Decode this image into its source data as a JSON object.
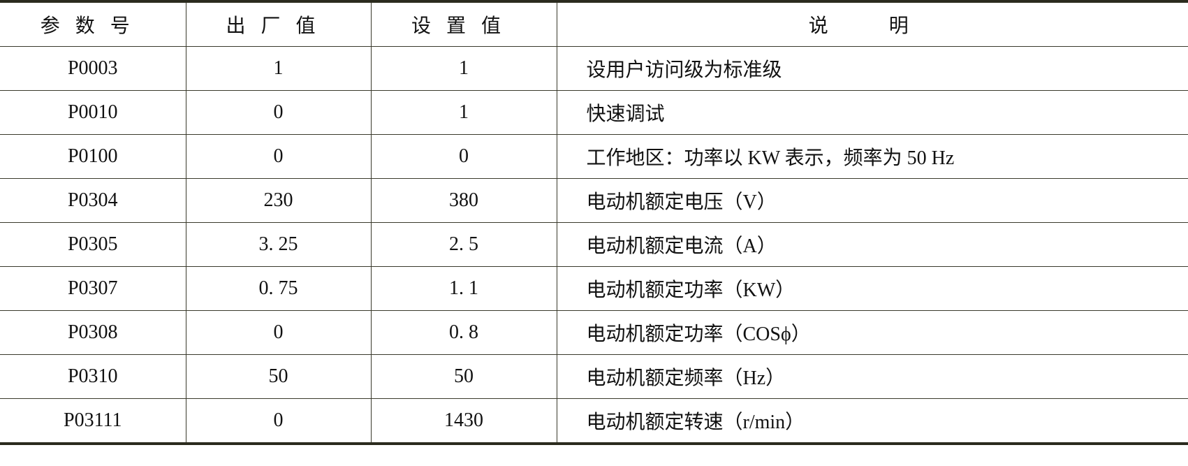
{
  "headers": [
    "参数号",
    "出厂值",
    "设置值",
    "说 明"
  ],
  "rows": [
    {
      "param": "P0003",
      "factory": "1",
      "setting": "1",
      "desc": "设用户访问级为标准级"
    },
    {
      "param": "P0010",
      "factory": "0",
      "setting": "1",
      "desc": "快速调试"
    },
    {
      "param": "P0100",
      "factory": "0",
      "setting": "0",
      "desc": "工作地区：功率以 KW 表示，频率为 50 Hz"
    },
    {
      "param": "P0304",
      "factory": "230",
      "setting": "380",
      "desc": "电动机额定电压（V）"
    },
    {
      "param": "P0305",
      "factory": "3. 25",
      "setting": "2. 5",
      "desc": "电动机额定电流（A）"
    },
    {
      "param": "P0307",
      "factory": "0. 75",
      "setting": "1. 1",
      "desc": "电动机额定功率（KW）"
    },
    {
      "param": "P0308",
      "factory": "0",
      "setting": "0. 8",
      "desc": "电动机额定功率（COSϕ）"
    },
    {
      "param": "P0310",
      "factory": "50",
      "setting": "50",
      "desc": "电动机额定频率（Hz）"
    },
    {
      "param": "P03111",
      "factory": "0",
      "setting": "1430",
      "desc": "电动机额定转速（r/min）"
    }
  ]
}
